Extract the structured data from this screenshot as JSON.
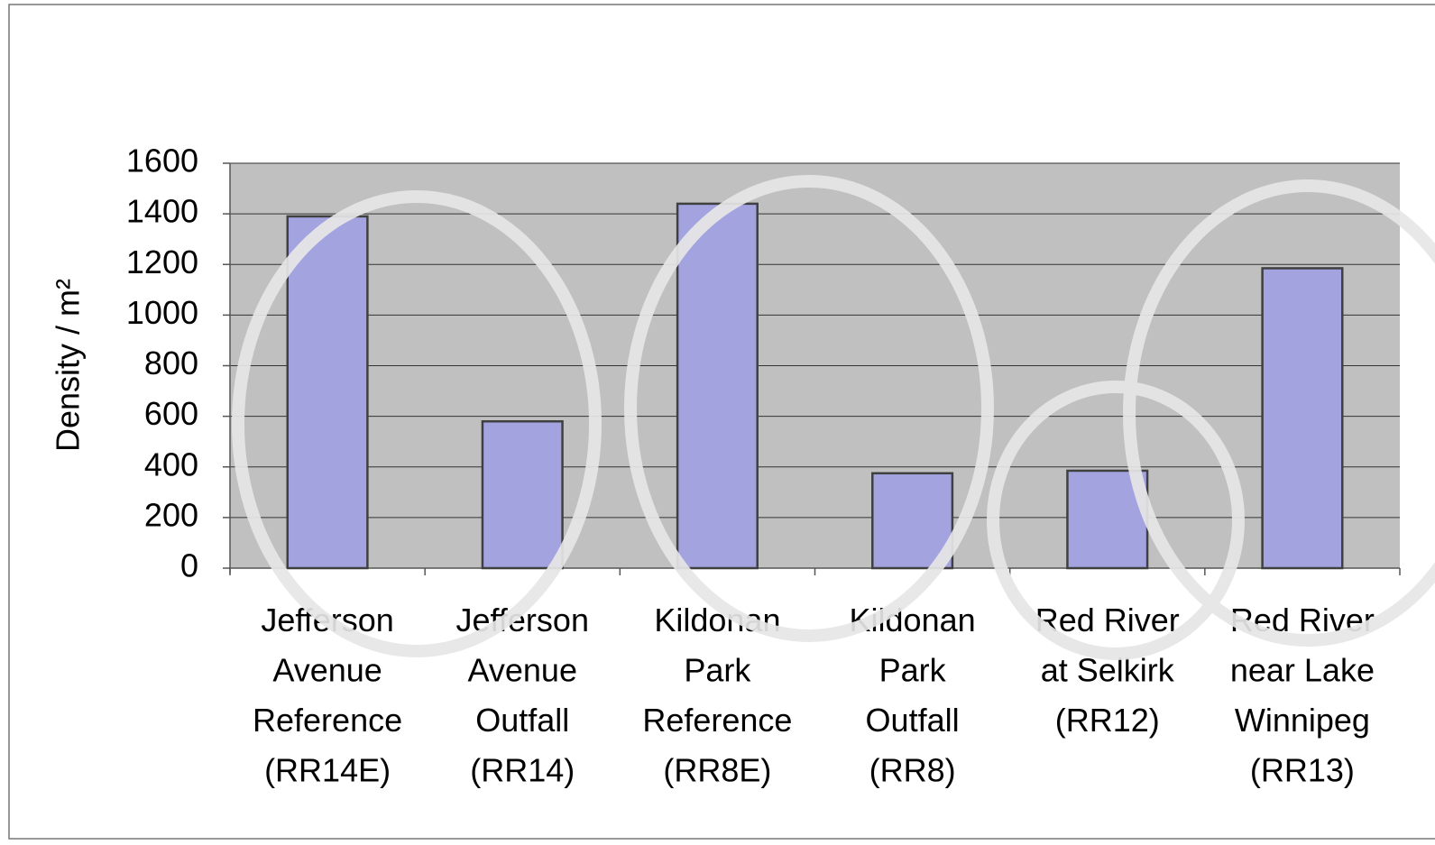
{
  "chart_data": {
    "type": "bar",
    "y_label": "Density / m²",
    "categories": [
      "Jefferson\nAvenue\nReference\n(RR14E)",
      "Jefferson\nAvenue\nOutfall\n(RR14)",
      "Kildonan\nPark\nReference\n(RR8E)",
      "Kildonan\nPark\nOutfall\n(RR8)",
      "Red River\nat Selkirk\n(RR12)",
      "Red River\nnear Lake\nWinnipeg\n(RR13)"
    ],
    "values": [
      1390,
      580,
      1440,
      375,
      385,
      1185
    ],
    "color": "#a3a3e0",
    "ylim": [
      0,
      1600
    ],
    "yticks": [
      0,
      200,
      400,
      600,
      800,
      1000,
      1200,
      1400,
      1600
    ],
    "grid": true
  }
}
